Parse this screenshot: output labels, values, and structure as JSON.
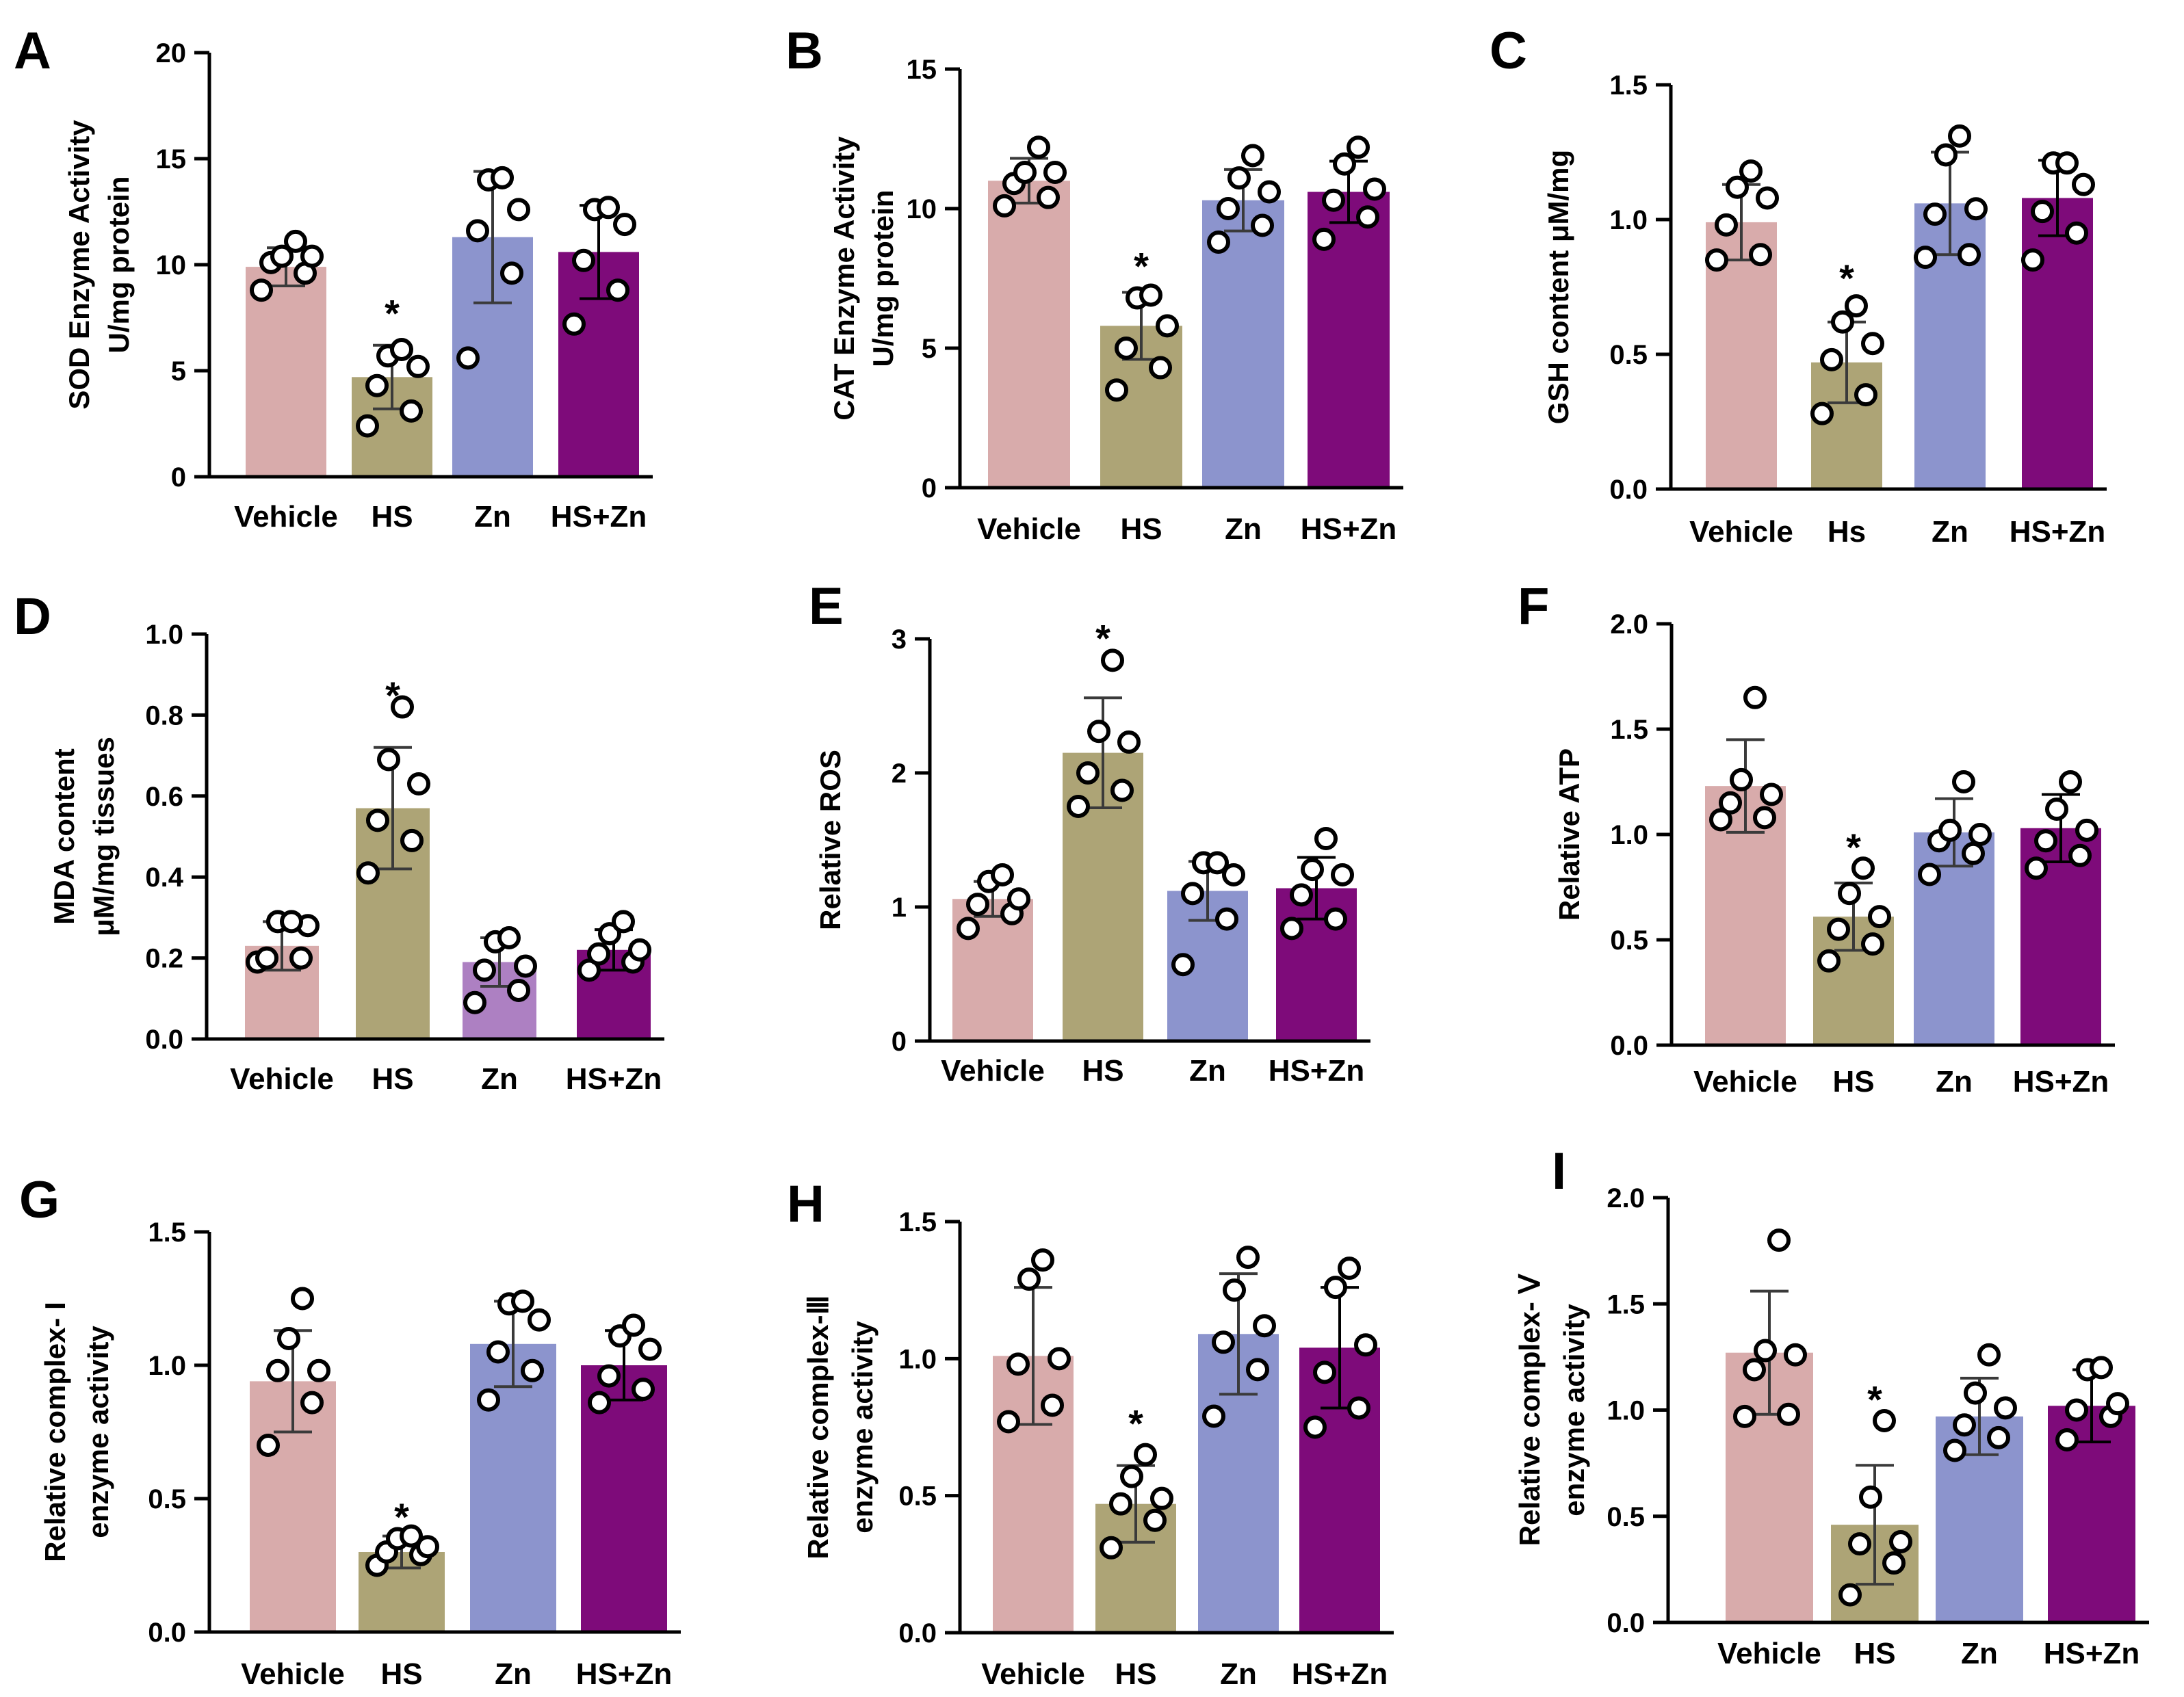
{
  "figure": {
    "colors": {
      "Vehicle": "#d8abab",
      "HS": "#ada476",
      "Zn": "#8c94cd",
      "Zn_alt": "#ad80c2",
      "HS+Zn": "#7e0b7a",
      "axis": "#000000",
      "point_fill": "#ffffff"
    }
  },
  "chart_data": [
    {
      "panel": "A",
      "type": "bar",
      "categories": [
        "Vehicle",
        "HS",
        "Zn",
        "HS+Zn"
      ],
      "values": [
        9.9,
        4.7,
        11.3,
        10.6
      ],
      "errors": [
        0.9,
        1.5,
        3.1,
        2.2
      ],
      "points": [
        [
          8.8,
          9.6,
          10.1,
          10.4,
          10.4,
          11.1
        ],
        [
          2.4,
          3.1,
          4.3,
          5.2,
          5.7,
          6.0
        ],
        [
          5.6,
          9.6,
          11.6,
          12.6,
          14.0,
          14.1
        ],
        [
          7.2,
          8.8,
          10.2,
          11.9,
          12.6,
          12.7
        ]
      ],
      "ylabel": [
        "SOD Enzyme Activity",
        "U/mg protein"
      ],
      "ylim": [
        0,
        20
      ],
      "yticks": [
        0,
        5,
        10,
        15,
        20
      ],
      "tick_labels": [
        "0",
        "5",
        "10",
        "15",
        "20"
      ],
      "star": "*",
      "star_index": 1,
      "star_value": 8.3
    },
    {
      "panel": "B",
      "type": "bar",
      "categories": [
        "Vehicle",
        "HS",
        "Zn",
        "HS+Zn"
      ],
      "values": [
        11.0,
        5.8,
        10.3,
        10.6
      ],
      "errors": [
        0.8,
        1.2,
        1.1,
        1.1
      ],
      "points": [
        [
          10.1,
          10.4,
          10.9,
          11.3,
          11.3,
          12.2
        ],
        [
          3.5,
          4.3,
          5.0,
          5.8,
          6.8,
          6.9
        ],
        [
          8.8,
          9.4,
          10.0,
          10.6,
          11.1,
          11.9
        ],
        [
          8.9,
          9.7,
          10.3,
          10.7,
          11.6,
          12.2
        ]
      ],
      "ylabel": [
        "CAT Enzyme Activity",
        "U/mg protein"
      ],
      "ylim": [
        0,
        15
      ],
      "yticks": [
        0,
        5,
        10,
        15
      ],
      "tick_labels": [
        "0",
        "5",
        "10",
        "15"
      ],
      "star": "*",
      "star_index": 1,
      "star_value": 8.4
    },
    {
      "panel": "C",
      "type": "bar",
      "categories": [
        "Vehicle",
        "Hs",
        "Zn",
        "HS+Zn"
      ],
      "values": [
        0.99,
        0.47,
        1.06,
        1.08
      ],
      "errors": [
        0.14,
        0.15,
        0.19,
        0.14
      ],
      "points": [
        [
          0.85,
          0.87,
          0.98,
          1.08,
          1.12,
          1.18
        ],
        [
          0.28,
          0.35,
          0.48,
          0.54,
          0.62,
          0.68
        ],
        [
          0.86,
          0.87,
          1.02,
          1.04,
          1.24,
          1.31
        ],
        [
          0.85,
          0.95,
          1.03,
          1.13,
          1.21,
          1.21
        ]
      ],
      "ylabel": [
        "GSH content μM/mg"
      ],
      "ylim": [
        0,
        1.5
      ],
      "yticks": [
        0,
        0.5,
        1.0,
        1.5
      ],
      "tick_labels": [
        "0.0",
        "0.5",
        "1.0",
        "1.5"
      ],
      "star": "*",
      "star_index": 1,
      "star_value": 0.83
    },
    {
      "panel": "D",
      "type": "bar",
      "categories": [
        "Vehicle",
        "HS",
        "Zn",
        "HS+Zn"
      ],
      "values": [
        0.23,
        0.57,
        0.19,
        0.22
      ],
      "errors": [
        0.06,
        0.15,
        0.06,
        0.05
      ],
      "points": [
        [
          0.19,
          0.2,
          0.2,
          0.28,
          0.29,
          0.29
        ],
        [
          0.41,
          0.49,
          0.54,
          0.63,
          0.69,
          0.82
        ],
        [
          0.09,
          0.12,
          0.17,
          0.18,
          0.24,
          0.25
        ],
        [
          0.17,
          0.19,
          0.21,
          0.22,
          0.26,
          0.29
        ]
      ],
      "ylabel": [
        "MDA content",
        "μM/mg tissues"
      ],
      "ylim": [
        0,
        1.0
      ],
      "yticks": [
        0,
        0.2,
        0.4,
        0.6,
        0.8,
        1.0
      ],
      "tick_labels": [
        "0.0",
        "0.2",
        "0.4",
        "0.6",
        "0.8",
        "1.0"
      ],
      "star": "*",
      "star_index": 1,
      "star_value": 0.88
    },
    {
      "panel": "E",
      "type": "bar",
      "categories": [
        "Vehicle",
        "HS",
        "Zn",
        "HS+Zn"
      ],
      "values": [
        1.06,
        2.15,
        1.12,
        1.14
      ],
      "errors": [
        0.13,
        0.41,
        0.22,
        0.23
      ],
      "points": [
        [
          0.84,
          0.95,
          1.02,
          1.06,
          1.19,
          1.24
        ],
        [
          1.75,
          1.87,
          2.0,
          2.23,
          2.31,
          2.84
        ],
        [
          0.57,
          0.91,
          1.1,
          1.24,
          1.33,
          1.33
        ],
        [
          0.84,
          0.91,
          1.09,
          1.24,
          1.28,
          1.51
        ]
      ],
      "ylabel": [
        "Relative ROS"
      ],
      "ylim": [
        0,
        3
      ],
      "yticks": [
        0,
        1,
        2,
        3
      ],
      "tick_labels": [
        "0",
        "1",
        "2",
        "3"
      ],
      "star": "*",
      "star_index": 1,
      "star_value": 3.1
    },
    {
      "panel": "F",
      "type": "bar",
      "categories": [
        "Vehicle",
        "HS",
        "Zn",
        "HS+Zn"
      ],
      "values": [
        1.23,
        0.61,
        1.01,
        1.03
      ],
      "errors": [
        0.22,
        0.16,
        0.16,
        0.16
      ],
      "points": [
        [
          1.07,
          1.08,
          1.15,
          1.19,
          1.26,
          1.65
        ],
        [
          0.4,
          0.48,
          0.55,
          0.61,
          0.72,
          0.84
        ],
        [
          0.81,
          0.91,
          0.97,
          1.0,
          1.02,
          1.25
        ],
        [
          0.84,
          0.9,
          0.97,
          1.02,
          1.12,
          1.25
        ]
      ],
      "ylabel": [
        "Relative ATP"
      ],
      "ylim": [
        0,
        2.0
      ],
      "yticks": [
        0,
        0.5,
        1.0,
        1.5,
        2.0
      ],
      "tick_labels": [
        "0.0",
        "0.5",
        "1.0",
        "1.5",
        "2.0"
      ],
      "star": "*",
      "star_index": 1,
      "star_value": 1.0
    },
    {
      "panel": "G",
      "type": "bar",
      "categories": [
        "Vehicle",
        "HS",
        "Zn",
        "HS+Zn"
      ],
      "values": [
        0.94,
        0.3,
        1.08,
        1.0
      ],
      "errors": [
        0.19,
        0.06,
        0.16,
        0.13
      ],
      "points": [
        [
          0.7,
          0.86,
          0.98,
          0.98,
          1.1,
          1.25
        ],
        [
          0.25,
          0.29,
          0.3,
          0.32,
          0.35,
          0.36
        ],
        [
          0.87,
          0.98,
          1.05,
          1.17,
          1.23,
          1.24
        ],
        [
          0.86,
          0.91,
          0.96,
          1.06,
          1.11,
          1.15
        ]
      ],
      "ylabel": [
        "Relative complex- I",
        "enzyme activity"
      ],
      "ylim": [
        0,
        1.5
      ],
      "yticks": [
        0,
        0.5,
        1.0,
        1.5
      ],
      "tick_labels": [
        "0.0",
        "0.5",
        "1.0",
        "1.5"
      ],
      "star": "*",
      "star_index": 1,
      "star_value": 0.48
    },
    {
      "panel": "H",
      "type": "bar",
      "categories": [
        "Vehicle",
        "HS",
        "Zn",
        "HS+Zn"
      ],
      "values": [
        1.01,
        0.47,
        1.09,
        1.04
      ],
      "errors": [
        0.25,
        0.14,
        0.22,
        0.22
      ],
      "points": [
        [
          0.77,
          0.83,
          0.98,
          1.0,
          1.29,
          1.36
        ],
        [
          0.31,
          0.41,
          0.47,
          0.49,
          0.57,
          0.65
        ],
        [
          0.79,
          0.96,
          1.06,
          1.12,
          1.25,
          1.37
        ],
        [
          0.75,
          0.82,
          0.95,
          1.05,
          1.26,
          1.33
        ]
      ],
      "ylabel": [
        "Relative complex-Ⅲ",
        "enzyme activity"
      ],
      "ylim": [
        0,
        1.5
      ],
      "yticks": [
        0,
        0.5,
        1.0,
        1.5
      ],
      "tick_labels": [
        "0.0",
        "0.5",
        "1.0",
        "1.5"
      ],
      "star": "*",
      "star_index": 1,
      "star_value": 0.81
    },
    {
      "panel": "I",
      "type": "bar",
      "categories": [
        "Vehicle",
        "HS",
        "Zn",
        "HS+Zn"
      ],
      "values": [
        1.27,
        0.46,
        0.97,
        1.02
      ],
      "errors": [
        0.29,
        0.28,
        0.18,
        0.17
      ],
      "points": [
        [
          0.97,
          0.98,
          1.19,
          1.26,
          1.28,
          1.8
        ],
        [
          0.13,
          0.28,
          0.37,
          0.38,
          0.59,
          0.95
        ],
        [
          0.81,
          0.87,
          0.93,
          1.01,
          1.08,
          1.26
        ],
        [
          0.86,
          0.97,
          1.0,
          1.03,
          1.19,
          1.2
        ]
      ],
      "ylabel": [
        "Relative complex- Ⅴ",
        "enzyme activity"
      ],
      "ylim": [
        0,
        2.0
      ],
      "yticks": [
        0,
        0.5,
        1.0,
        1.5,
        2.0
      ],
      "tick_labels": [
        "0.0",
        "0.5",
        "1.0",
        "1.5",
        "2.0"
      ],
      "star": "*",
      "star_index": 1,
      "star_value": 1.11
    }
  ]
}
